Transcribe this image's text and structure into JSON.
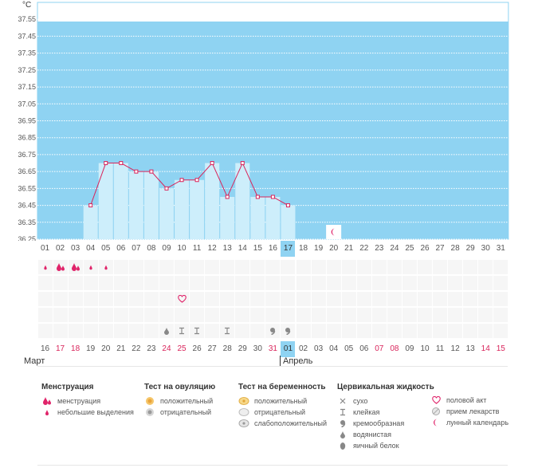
{
  "temperature_unit": "°C",
  "chart_data": {
    "type": "bar",
    "ylabel": "°C",
    "y_ticks": [
      "37.55",
      "37.45",
      "37.35",
      "37.25",
      "37.15",
      "37.05",
      "36.95",
      "36.85",
      "36.75",
      "36.65",
      "36.55",
      "36.45",
      "36.35",
      "36.25"
    ],
    "ylim": [
      36.25,
      37.65
    ],
    "cycle_days": [
      "01",
      "02",
      "03",
      "04",
      "05",
      "06",
      "07",
      "08",
      "09",
      "10",
      "11",
      "12",
      "13",
      "14",
      "15",
      "16",
      "17",
      "18",
      "19",
      "20",
      "21",
      "22",
      "23",
      "24",
      "25",
      "26",
      "27",
      "28",
      "29",
      "30",
      "31"
    ],
    "temperatures": [
      null,
      null,
      null,
      36.45,
      36.7,
      36.7,
      36.65,
      36.65,
      36.55,
      36.6,
      36.6,
      36.7,
      36.5,
      36.7,
      36.5,
      36.5,
      36.45,
      null,
      null,
      null,
      null,
      null,
      null,
      null,
      null,
      null,
      null,
      null,
      null,
      null,
      null
    ],
    "grid": true,
    "fill_color": "#8fd3f2",
    "bar_color": "#cdeefb",
    "line_color": "#d9245b"
  },
  "current_day_index": 16,
  "moon_day_index": 19,
  "calendar": {
    "dates": [
      {
        "label": "16",
        "red": false
      },
      {
        "label": "17",
        "red": true
      },
      {
        "label": "18",
        "red": true
      },
      {
        "label": "19",
        "red": false
      },
      {
        "label": "20",
        "red": false
      },
      {
        "label": "21",
        "red": false
      },
      {
        "label": "22",
        "red": false
      },
      {
        "label": "23",
        "red": false
      },
      {
        "label": "24",
        "red": true
      },
      {
        "label": "25",
        "red": true
      },
      {
        "label": "26",
        "red": false
      },
      {
        "label": "27",
        "red": false
      },
      {
        "label": "28",
        "red": false
      },
      {
        "label": "29",
        "red": false
      },
      {
        "label": "30",
        "red": false
      },
      {
        "label": "31",
        "red": true
      },
      {
        "label": "01",
        "red": false
      },
      {
        "label": "02",
        "red": false
      },
      {
        "label": "03",
        "red": false
      },
      {
        "label": "04",
        "red": false
      },
      {
        "label": "05",
        "red": false
      },
      {
        "label": "06",
        "red": false
      },
      {
        "label": "07",
        "red": true
      },
      {
        "label": "08",
        "red": true
      },
      {
        "label": "09",
        "red": false
      },
      {
        "label": "10",
        "red": false
      },
      {
        "label": "11",
        "red": false
      },
      {
        "label": "12",
        "red": false
      },
      {
        "label": "13",
        "red": false
      },
      {
        "label": "14",
        "red": true
      },
      {
        "label": "15",
        "red": true
      }
    ],
    "month_left": "Март",
    "month_right": "Апрель"
  },
  "marks": {
    "menstruation": [
      {
        "day": 0,
        "kind": "light"
      },
      {
        "day": 1,
        "kind": "heavy"
      },
      {
        "day": 2,
        "kind": "heavy"
      },
      {
        "day": 3,
        "kind": "light"
      },
      {
        "day": 4,
        "kind": "light"
      }
    ],
    "intercourse": [
      {
        "day": 9
      }
    ],
    "cervical": [
      {
        "day": 8,
        "kind": "watery"
      },
      {
        "day": 9,
        "kind": "sticky"
      },
      {
        "day": 10,
        "kind": "sticky"
      },
      {
        "day": 12,
        "kind": "sticky"
      },
      {
        "day": 15,
        "kind": "creamy"
      },
      {
        "day": 16,
        "kind": "creamy"
      }
    ]
  },
  "legend": {
    "menstruation": {
      "title": "Менструация",
      "items": [
        {
          "label": "менструация",
          "icon": "blood-drops-icon"
        },
        {
          "label": "небольшие выделения",
          "icon": "blood-drop-icon"
        }
      ]
    },
    "ovulation": {
      "title": "Тест на овуляцию",
      "items": [
        {
          "label": "положительный",
          "icon": "positive-test-icon"
        },
        {
          "label": "отрицательный",
          "icon": "negative-test-icon"
        }
      ]
    },
    "pregnancy": {
      "title": "Тест на беременность",
      "items": [
        {
          "label": "положительный",
          "icon": "positive-pregnancy-icon"
        },
        {
          "label": "отрицательный",
          "icon": "negative-pregnancy-icon"
        },
        {
          "label": "слабоположительный",
          "icon": "weak-positive-pregnancy-icon"
        }
      ]
    },
    "cervical": {
      "title": "Цервикальная жидкость",
      "items": [
        {
          "label": "сухо",
          "icon": "dry-icon"
        },
        {
          "label": "клейкая",
          "icon": "sticky-icon"
        },
        {
          "label": "кремообразная",
          "icon": "creamy-icon"
        },
        {
          "label": "водянистая",
          "icon": "watery-icon"
        },
        {
          "label": "яичный белок",
          "icon": "egg-white-icon"
        }
      ]
    },
    "other": {
      "items": [
        {
          "label": "половой акт",
          "icon": "heart-icon"
        },
        {
          "label": "прием лекарств",
          "icon": "pill-icon"
        },
        {
          "label": "лунный календарь",
          "icon": "moon-icon"
        }
      ]
    }
  }
}
